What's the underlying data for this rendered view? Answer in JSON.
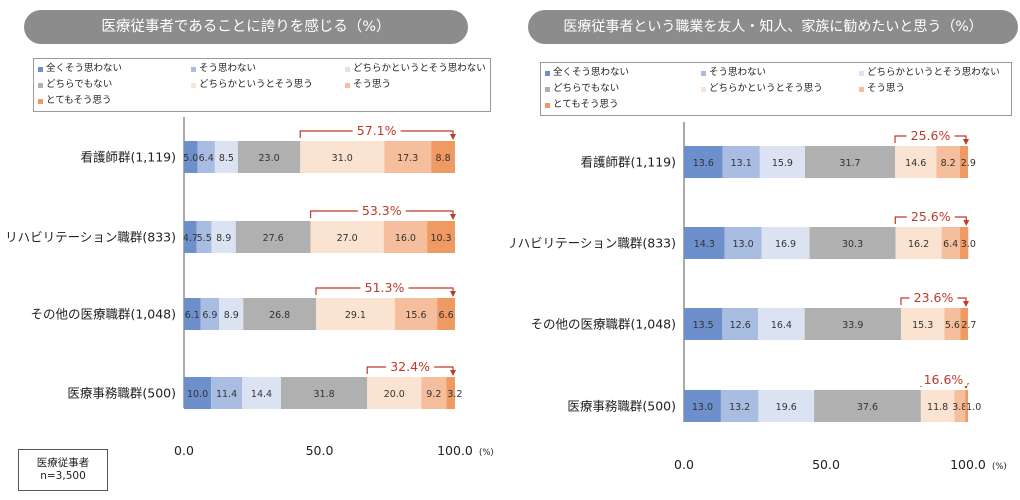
{
  "note": {
    "line1": "医療従事者",
    "line2": "n=3,500"
  },
  "legend_labels": [
    "全くそう思わない",
    "そう思わない",
    "どちらかというとそう思わない",
    "どちらでもない",
    "どちらかというとそう思う",
    "そう思う",
    "とてもそう思う"
  ],
  "colors": [
    "#6d8fcc",
    "#a9bde2",
    "#dbe3f3",
    "#b0b0b0",
    "#fbe3d2",
    "#f5bf9d",
    "#ef9a63"
  ],
  "arrow_color": "#c0392b",
  "chart_data": [
    {
      "type": "bar",
      "orientation": "horizontal-stacked",
      "title": "医療従事者であることに誇りを感じる（%）",
      "categories": [
        "看護師群(1,119)",
        "リハビリテーション職群(833)",
        "その他の医療職群(1,048)",
        "医療事務職群(500)"
      ],
      "series": [
        {
          "name": "全くそう思わない",
          "values": [
            5.0,
            4.7,
            6.1,
            10.0
          ]
        },
        {
          "name": "そう思わない",
          "values": [
            6.4,
            5.5,
            6.9,
            11.4
          ]
        },
        {
          "name": "どちらかというとそう思わない",
          "values": [
            8.5,
            8.9,
            8.9,
            14.4
          ]
        },
        {
          "name": "どちらでもない",
          "values": [
            23.0,
            27.6,
            26.8,
            31.8
          ]
        },
        {
          "name": "どちらかというとそう思う",
          "values": [
            31.0,
            27.0,
            29.1,
            20.0
          ]
        },
        {
          "name": "そう思う",
          "values": [
            17.3,
            16.0,
            15.6,
            9.2
          ]
        },
        {
          "name": "とてもそう思う",
          "values": [
            8.8,
            10.3,
            6.6,
            3.2
          ]
        }
      ],
      "positive_totals": [
        "57.1%",
        "53.3%",
        "51.3%",
        "32.4%"
      ],
      "xlim": [
        0,
        100
      ],
      "xticks": [
        "0.0",
        "50.0",
        "100.0"
      ],
      "xunit": "(%)"
    },
    {
      "type": "bar",
      "orientation": "horizontal-stacked",
      "title": "医療従事者という職業を友人・知人、家族に勧めたいと思う（%）",
      "categories": [
        "看護師群(1,119)",
        "リハビリテーション職群(833)",
        "その他の医療職群(1,048)",
        "医療事務職群(500)"
      ],
      "series": [
        {
          "name": "全くそう思わない",
          "values": [
            13.6,
            14.3,
            13.5,
            13.0
          ]
        },
        {
          "name": "そう思わない",
          "values": [
            13.1,
            13.0,
            12.6,
            13.2
          ]
        },
        {
          "name": "どちらかというとそう思わない",
          "values": [
            15.9,
            16.9,
            16.4,
            19.6
          ]
        },
        {
          "name": "どちらでもない",
          "values": [
            31.7,
            30.3,
            33.9,
            37.6
          ]
        },
        {
          "name": "どちらかというとそう思う",
          "values": [
            14.6,
            16.2,
            15.3,
            11.8
          ]
        },
        {
          "name": "そう思う",
          "values": [
            8.2,
            6.4,
            5.6,
            3.8
          ]
        },
        {
          "name": "とてもそう思う",
          "values": [
            2.9,
            3.0,
            2.7,
            1.0
          ]
        }
      ],
      "positive_totals": [
        "25.6%",
        "25.6%",
        "23.6%",
        "16.6%"
      ],
      "xlim": [
        0,
        100
      ],
      "xticks": [
        "0.0",
        "50.0",
        "100.0"
      ],
      "xunit": "(%)"
    }
  ]
}
